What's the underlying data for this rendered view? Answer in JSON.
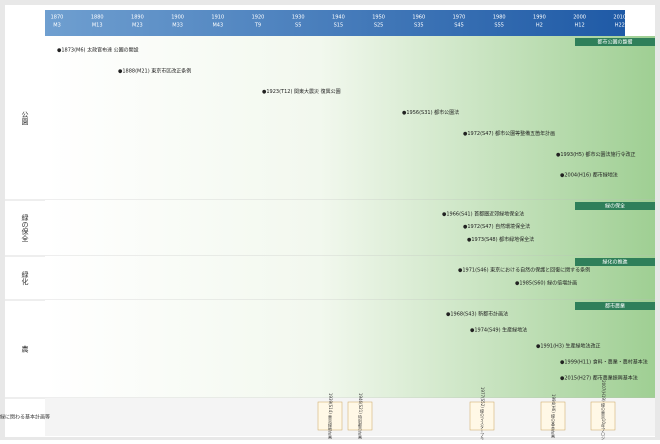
{
  "header": {
    "years": [
      {
        "year": "1870",
        "era": "M3"
      },
      {
        "year": "1880",
        "era": "M13"
      },
      {
        "year": "1890",
        "era": "M23"
      },
      {
        "year": "1900",
        "era": "M33"
      },
      {
        "year": "1910",
        "era": "M43"
      },
      {
        "year": "1920",
        "era": "T9"
      },
      {
        "year": "1930",
        "era": "S5"
      },
      {
        "year": "1940",
        "era": "S15"
      },
      {
        "year": "1950",
        "era": "S25"
      },
      {
        "year": "1960",
        "era": "S35"
      },
      {
        "year": "1970",
        "era": "S45"
      },
      {
        "year": "1980",
        "era": "S55"
      },
      {
        "year": "1990",
        "era": "H2"
      },
      {
        "year": "2000",
        "era": "H12"
      },
      {
        "year": "2010",
        "era": "H22"
      }
    ]
  },
  "sections": [
    {
      "label": "公園",
      "tag": "都市公園の整備",
      "events": [
        "●1873(M6) 太政官布達 公園の開設",
        "●1888(M21) 東京市区改正条例",
        "●1923(T12) 関東大震災 復興公園",
        "●1956(S31) 都市公園法",
        "●1972(S47) 都市公園等整備五箇年計画",
        "●1993(H5) 都市公園法施行令改正",
        "●2004(H16) 都市緑地法"
      ]
    },
    {
      "label": "緑の保全",
      "tag": "緑の保全",
      "events": [
        "●1966(S41) 首都圏近郊緑地保全法",
        "●1972(S47) 自然環境保全法",
        "●1973(S48) 都市緑地保全法"
      ]
    },
    {
      "label": "緑化",
      "tag": "緑化の推進",
      "events": [
        "●1971(S46) 東京における自然の保護と回復に関する条例",
        "●1985(S60) 緑の倍増計画"
      ]
    },
    {
      "label": "農",
      "tag": "都市農業",
      "events": [
        "●1968(S43) 新都市計画法",
        "●1974(S49) 生産緑地法",
        "●1991(H3) 生産緑地法改正",
        "●1999(H11) 食料・農業・農村基本法",
        "●2015(H27) 都市農業振興基本法"
      ]
    }
  ],
  "plans": {
    "label": "緑に関わる基本計画等",
    "items": [
      "1939(S14) 東京緑地計画",
      "1946(S21) 特別都市計画",
      "1977(S52) 緑のマスタープラン",
      "1994(H6) 緑の基本計画",
      "2007(H19) 緑の東京10年プロジェクト"
    ]
  }
}
